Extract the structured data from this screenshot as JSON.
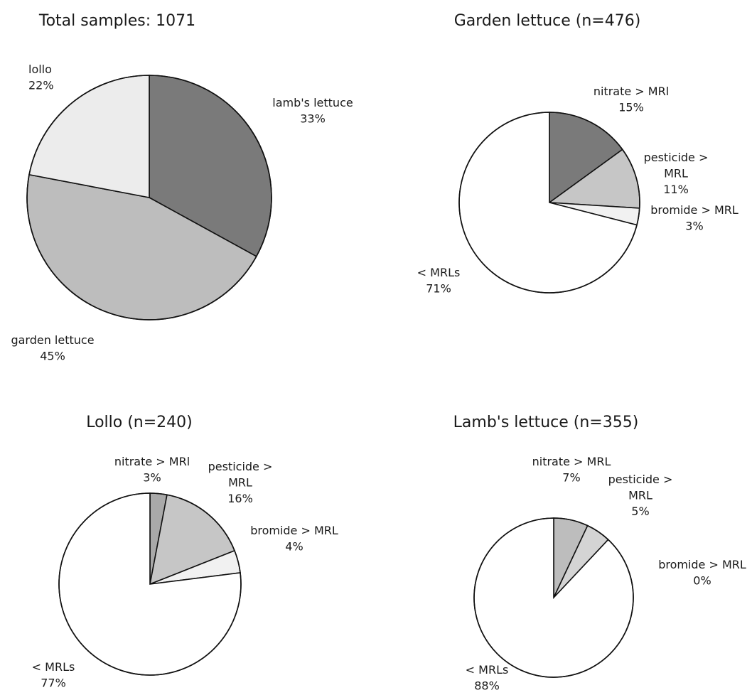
{
  "chart_data": [
    {
      "type": "pie",
      "title": "Total samples: 1071",
      "slices": [
        {
          "label_lines": [
            "lamb's lettuce",
            "33%"
          ],
          "value": 33,
          "color": "#7a7a7a"
        },
        {
          "label_lines": [
            "garden lettuce",
            "45%"
          ],
          "value": 45,
          "color": "#bdbdbd"
        },
        {
          "label_lines": [
            "lollo",
            "22%"
          ],
          "value": 22,
          "color": "#ececec"
        }
      ]
    },
    {
      "type": "pie",
      "title": "Garden lettuce (n=476)",
      "slices": [
        {
          "label_lines": [
            "nitrate > MRl",
            "15%"
          ],
          "value": 15,
          "color": "#7a7a7a"
        },
        {
          "label_lines": [
            "pesticide >",
            "MRL",
            "11%"
          ],
          "value": 11,
          "color": "#c6c6c6"
        },
        {
          "label_lines": [
            "bromide > MRL",
            "3%"
          ],
          "value": 3,
          "color": "#f1f1f1"
        },
        {
          "label_lines": [
            "< MRLs",
            "71%"
          ],
          "value": 71,
          "color": "#ffffff"
        }
      ]
    },
    {
      "type": "pie",
      "title": "Lollo (n=240)",
      "slices": [
        {
          "label_lines": [
            "nitrate > MRl",
            "3%"
          ],
          "value": 3,
          "color": "#a9a9a9"
        },
        {
          "label_lines": [
            "pesticide >",
            "MRL",
            "16%"
          ],
          "value": 16,
          "color": "#c6c6c6"
        },
        {
          "label_lines": [
            "bromide > MRL",
            "4%"
          ],
          "value": 4,
          "color": "#f1f1f1"
        },
        {
          "label_lines": [
            "< MRLs",
            "77%"
          ],
          "value": 77,
          "color": "#ffffff"
        }
      ]
    },
    {
      "type": "pie",
      "title": "Lamb's lettuce (n=355)",
      "slices": [
        {
          "label_lines": [
            "nitrate > MRL",
            "7%"
          ],
          "value": 7,
          "color": "#bdbdbd"
        },
        {
          "label_lines": [
            "pesticide >",
            "MRL",
            "5%"
          ],
          "value": 5,
          "color": "#d4d4d4"
        },
        {
          "label_lines": [
            "bromide > MRL",
            "0%"
          ],
          "value": 0,
          "color": "#f1f1f1"
        },
        {
          "label_lines": [
            "< MRLs",
            "88%"
          ],
          "value": 88,
          "color": "#ffffff"
        }
      ]
    }
  ]
}
